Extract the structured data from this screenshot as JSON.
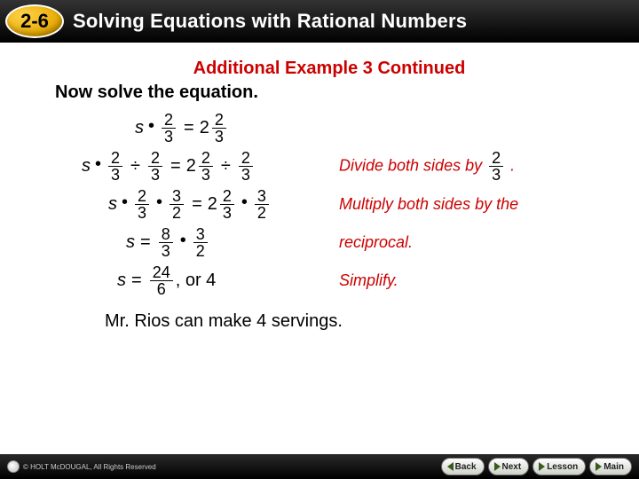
{
  "header": {
    "badge": "2-6",
    "title": "Solving Equations with Rational Numbers"
  },
  "example": {
    "title": "Additional Example 3 Continued",
    "instruction": "Now solve the equation."
  },
  "eq": {
    "s": "s",
    "eq_sign": "=",
    "dot": "•",
    "div": "÷",
    "two": "2",
    "three": "3",
    "eight": "8",
    "twentyfour": "24",
    "six": "6",
    "or4": ", or 4"
  },
  "notes": {
    "divide": "Divide both sides by",
    "period": ".",
    "mult": "Multiply both sides by the",
    "recip": "reciprocal.",
    "simplify": "Simplify."
  },
  "answer": "Mr. Rios can make 4 servings.",
  "footer": {
    "copyright": "© HOLT McDOUGAL, All Rights Reserved",
    "back": "Back",
    "next": "Next",
    "lesson": "Lesson",
    "main": "Main"
  },
  "style": {
    "accent_red": "#cc0000",
    "header_bg": "#000000",
    "badge_gold": "#e6a800",
    "note_fontsize": 18,
    "title_fontsize": 22,
    "body_fontsize": 20
  }
}
